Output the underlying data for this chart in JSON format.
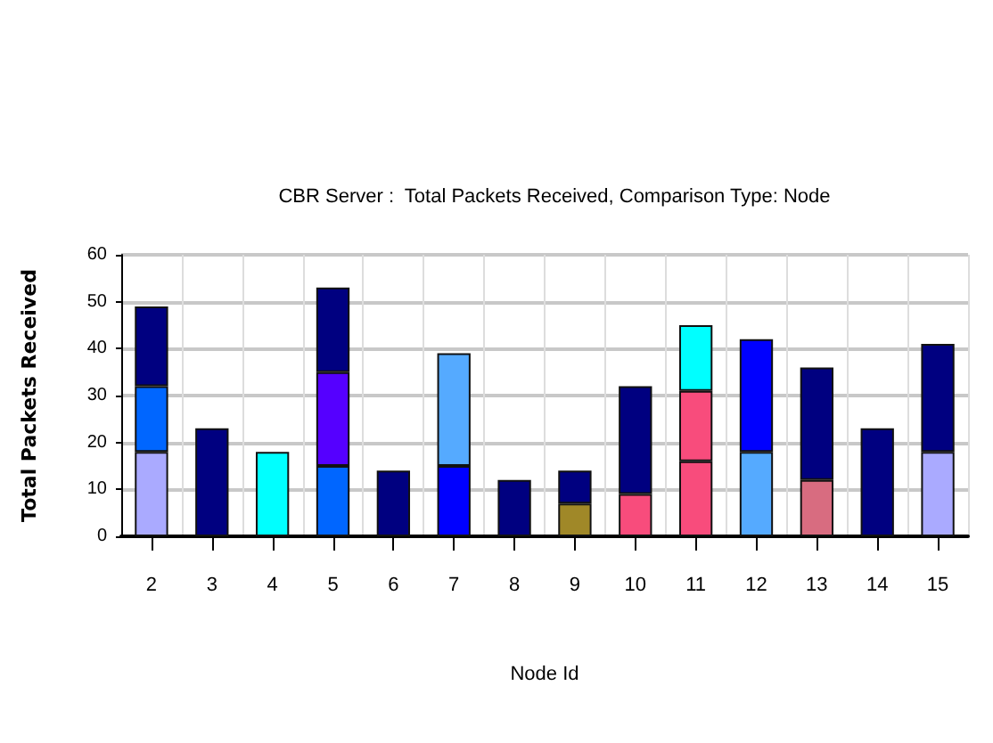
{
  "chart_data": {
    "type": "bar",
    "title": "CBR Server :  Total Packets Received, Comparison Type: Node",
    "xlabel": "Node Id",
    "ylabel": "Total Packets Received",
    "categories": [
      "2",
      "3",
      "4",
      "5",
      "6",
      "7",
      "8",
      "9",
      "10",
      "11",
      "12",
      "13",
      "14",
      "15"
    ],
    "stacked": true,
    "series": [
      {
        "values": [
          18,
          23,
          18,
          15,
          14,
          15,
          12,
          7,
          9,
          16,
          18,
          12,
          23,
          18
        ],
        "colors": [
          "#aaaaff",
          "#000080",
          "#00ffff",
          "#0066ff",
          "#000080",
          "#0000ff",
          "#000080",
          "#a08828",
          "#f84c7c",
          "#f84c7c",
          "#55aaff",
          "#d86c80",
          "#000080",
          "#aaaaff"
        ]
      },
      {
        "values": [
          14,
          null,
          null,
          20,
          null,
          24,
          null,
          7,
          23,
          15,
          24,
          24,
          null,
          23
        ],
        "colors": [
          "#0066ff",
          null,
          null,
          "#5500ff",
          null,
          "#55aaff",
          null,
          "#000080",
          "#000080",
          "#f84c7c",
          "#0000ff",
          "#000080",
          null,
          "#000080"
        ]
      },
      {
        "values": [
          17,
          null,
          null,
          18,
          null,
          null,
          null,
          null,
          null,
          14,
          null,
          null,
          null,
          null
        ],
        "colors": [
          "#000080",
          null,
          null,
          "#000080",
          null,
          null,
          null,
          null,
          null,
          "#00ffff",
          null,
          null,
          null,
          null
        ]
      }
    ],
    "ylim": [
      0,
      60
    ],
    "yticks": [
      0,
      10,
      20,
      30,
      40,
      50,
      60
    ],
    "grid": true
  }
}
